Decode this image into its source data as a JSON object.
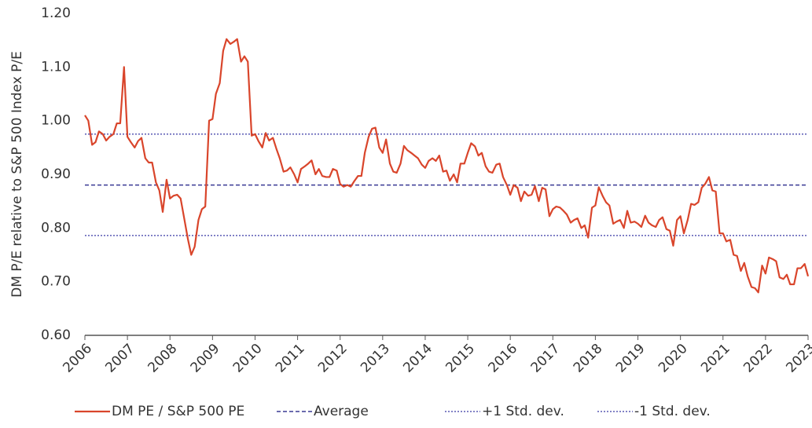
{
  "chart_data": {
    "type": "line",
    "y_label": "DM P/E relative to S&P 500 Index P/E",
    "x": [
      2006,
      2006.08,
      2006.17,
      2006.25,
      2006.33,
      2006.42,
      2006.5,
      2006.58,
      2006.67,
      2006.75,
      2006.83,
      2006.92,
      2007,
      2007.08,
      2007.17,
      2007.25,
      2007.33,
      2007.42,
      2007.5,
      2007.58,
      2007.67,
      2007.75,
      2007.83,
      2007.92,
      2008,
      2008.08,
      2008.17,
      2008.25,
      2008.33,
      2008.42,
      2008.5,
      2008.58,
      2008.67,
      2008.75,
      2008.83,
      2008.92,
      2009,
      2009.08,
      2009.17,
      2009.25,
      2009.33,
      2009.42,
      2009.5,
      2009.58,
      2009.67,
      2009.75,
      2009.83,
      2009.92,
      2010,
      2010.08,
      2010.17,
      2010.25,
      2010.33,
      2010.42,
      2010.5,
      2010.58,
      2010.67,
      2010.75,
      2010.83,
      2010.92,
      2011,
      2011.08,
      2011.17,
      2011.25,
      2011.33,
      2011.42,
      2011.5,
      2011.58,
      2011.67,
      2011.75,
      2011.83,
      2011.92,
      2012,
      2012.08,
      2012.17,
      2012.25,
      2012.33,
      2012.42,
      2012.5,
      2012.58,
      2012.67,
      2012.75,
      2012.83,
      2012.92,
      2013,
      2013.08,
      2013.17,
      2013.25,
      2013.33,
      2013.42,
      2013.5,
      2013.58,
      2013.67,
      2013.75,
      2013.83,
      2013.92,
      2014,
      2014.08,
      2014.17,
      2014.25,
      2014.33,
      2014.42,
      2014.5,
      2014.58,
      2014.67,
      2014.75,
      2014.83,
      2014.92,
      2015,
      2015.08,
      2015.17,
      2015.25,
      2015.33,
      2015.42,
      2015.5,
      2015.58,
      2015.67,
      2015.75,
      2015.83,
      2015.92,
      2016,
      2016.08,
      2016.17,
      2016.25,
      2016.33,
      2016.42,
      2016.5,
      2016.58,
      2016.67,
      2016.75,
      2016.83,
      2016.92,
      2017,
      2017.08,
      2017.17,
      2017.25,
      2017.33,
      2017.42,
      2017.5,
      2017.58,
      2017.67,
      2017.75,
      2017.83,
      2017.92,
      2018,
      2018.08,
      2018.17,
      2018.25,
      2018.33,
      2018.42,
      2018.5,
      2018.58,
      2018.67,
      2018.75,
      2018.83,
      2018.92,
      2019,
      2019.08,
      2019.17,
      2019.25,
      2019.33,
      2019.42,
      2019.5,
      2019.58,
      2019.67,
      2019.75,
      2019.83,
      2019.92,
      2020,
      2020.08,
      2020.17,
      2020.25,
      2020.33,
      2020.42,
      2020.5,
      2020.58,
      2020.67,
      2020.75,
      2020.83,
      2020.92,
      2021,
      2021.08,
      2021.17,
      2021.25,
      2021.33,
      2021.42,
      2021.5,
      2021.58,
      2021.67,
      2021.75,
      2021.83,
      2021.92,
      2022,
      2022.08,
      2022.17,
      2022.25,
      2022.33,
      2022.42,
      2022.5,
      2022.58,
      2022.67,
      2022.75,
      2022.83,
      2022.92,
      2023
    ],
    "series": [
      {
        "name": "DM PE / S&P 500 PE",
        "color": "#d9452b",
        "values": [
          1.01,
          1.0,
          0.955,
          0.96,
          0.98,
          0.975,
          0.963,
          0.97,
          0.975,
          0.995,
          0.995,
          1.1,
          0.97,
          0.96,
          0.95,
          0.962,
          0.968,
          0.93,
          0.922,
          0.922,
          0.885,
          0.87,
          0.83,
          0.89,
          0.855,
          0.86,
          0.862,
          0.855,
          0.82,
          0.78,
          0.75,
          0.765,
          0.815,
          0.835,
          0.84,
          1.0,
          1.003,
          1.05,
          1.07,
          1.13,
          1.152,
          1.143,
          1.147,
          1.152,
          1.11,
          1.12,
          1.11,
          0.972,
          0.975,
          0.962,
          0.95,
          0.977,
          0.963,
          0.968,
          0.948,
          0.93,
          0.905,
          0.907,
          0.913,
          0.9,
          0.885,
          0.91,
          0.915,
          0.92,
          0.926,
          0.9,
          0.91,
          0.897,
          0.895,
          0.895,
          0.91,
          0.907,
          0.882,
          0.877,
          0.88,
          0.877,
          0.887,
          0.897,
          0.897,
          0.94,
          0.97,
          0.985,
          0.987,
          0.95,
          0.94,
          0.965,
          0.92,
          0.905,
          0.903,
          0.92,
          0.953,
          0.945,
          0.94,
          0.935,
          0.93,
          0.918,
          0.912,
          0.925,
          0.93,
          0.925,
          0.935,
          0.905,
          0.907,
          0.888,
          0.9,
          0.885,
          0.92,
          0.92,
          0.94,
          0.958,
          0.952,
          0.935,
          0.94,
          0.915,
          0.905,
          0.903,
          0.918,
          0.92,
          0.895,
          0.88,
          0.862,
          0.88,
          0.875,
          0.85,
          0.868,
          0.86,
          0.862,
          0.878,
          0.85,
          0.875,
          0.872,
          0.822,
          0.835,
          0.84,
          0.838,
          0.832,
          0.825,
          0.81,
          0.815,
          0.818,
          0.8,
          0.805,
          0.782,
          0.838,
          0.842,
          0.876,
          0.86,
          0.848,
          0.842,
          0.808,
          0.812,
          0.815,
          0.8,
          0.832,
          0.81,
          0.812,
          0.808,
          0.802,
          0.823,
          0.81,
          0.805,
          0.802,
          0.815,
          0.82,
          0.798,
          0.795,
          0.767,
          0.815,
          0.822,
          0.79,
          0.815,
          0.845,
          0.843,
          0.848,
          0.875,
          0.882,
          0.895,
          0.87,
          0.868,
          0.79,
          0.79,
          0.775,
          0.778,
          0.75,
          0.748,
          0.72,
          0.735,
          0.71,
          0.69,
          0.688,
          0.68,
          0.73,
          0.715,
          0.745,
          0.742,
          0.738,
          0.708,
          0.705,
          0.713,
          0.695,
          0.695,
          0.725,
          0.725,
          0.733,
          0.71
        ]
      }
    ],
    "reference_lines": [
      {
        "name": "Average",
        "color": "#3a3a94",
        "value": 0.88,
        "dash": "dashed"
      },
      {
        "name": "+1 Std. dev.",
        "color": "#5a5ab4",
        "value": 0.975,
        "dash": "dotted"
      },
      {
        "name": "-1 Std. dev.",
        "color": "#5a5ab4",
        "value": 0.786,
        "dash": "dotted"
      }
    ],
    "xlim": [
      2006,
      2023
    ],
    "xticks": [
      2006,
      2007,
      2008,
      2009,
      2010,
      2011,
      2012,
      2013,
      2014,
      2015,
      2016,
      2017,
      2018,
      2019,
      2020,
      2021,
      2022,
      2023
    ],
    "ylim": [
      0.6,
      1.2
    ],
    "yticks": [
      {
        "value": 0.6,
        "label": "0.60"
      },
      {
        "value": 0.7,
        "label": "0.70"
      },
      {
        "value": 0.8,
        "label": "0.80"
      },
      {
        "value": 0.9,
        "label": "0.90"
      },
      {
        "value": 1.0,
        "label": "1.00"
      },
      {
        "value": 1.1,
        "label": "1.10"
      },
      {
        "value": 1.2,
        "label": "1.20"
      }
    ],
    "grid": false,
    "legend": "bottom"
  }
}
